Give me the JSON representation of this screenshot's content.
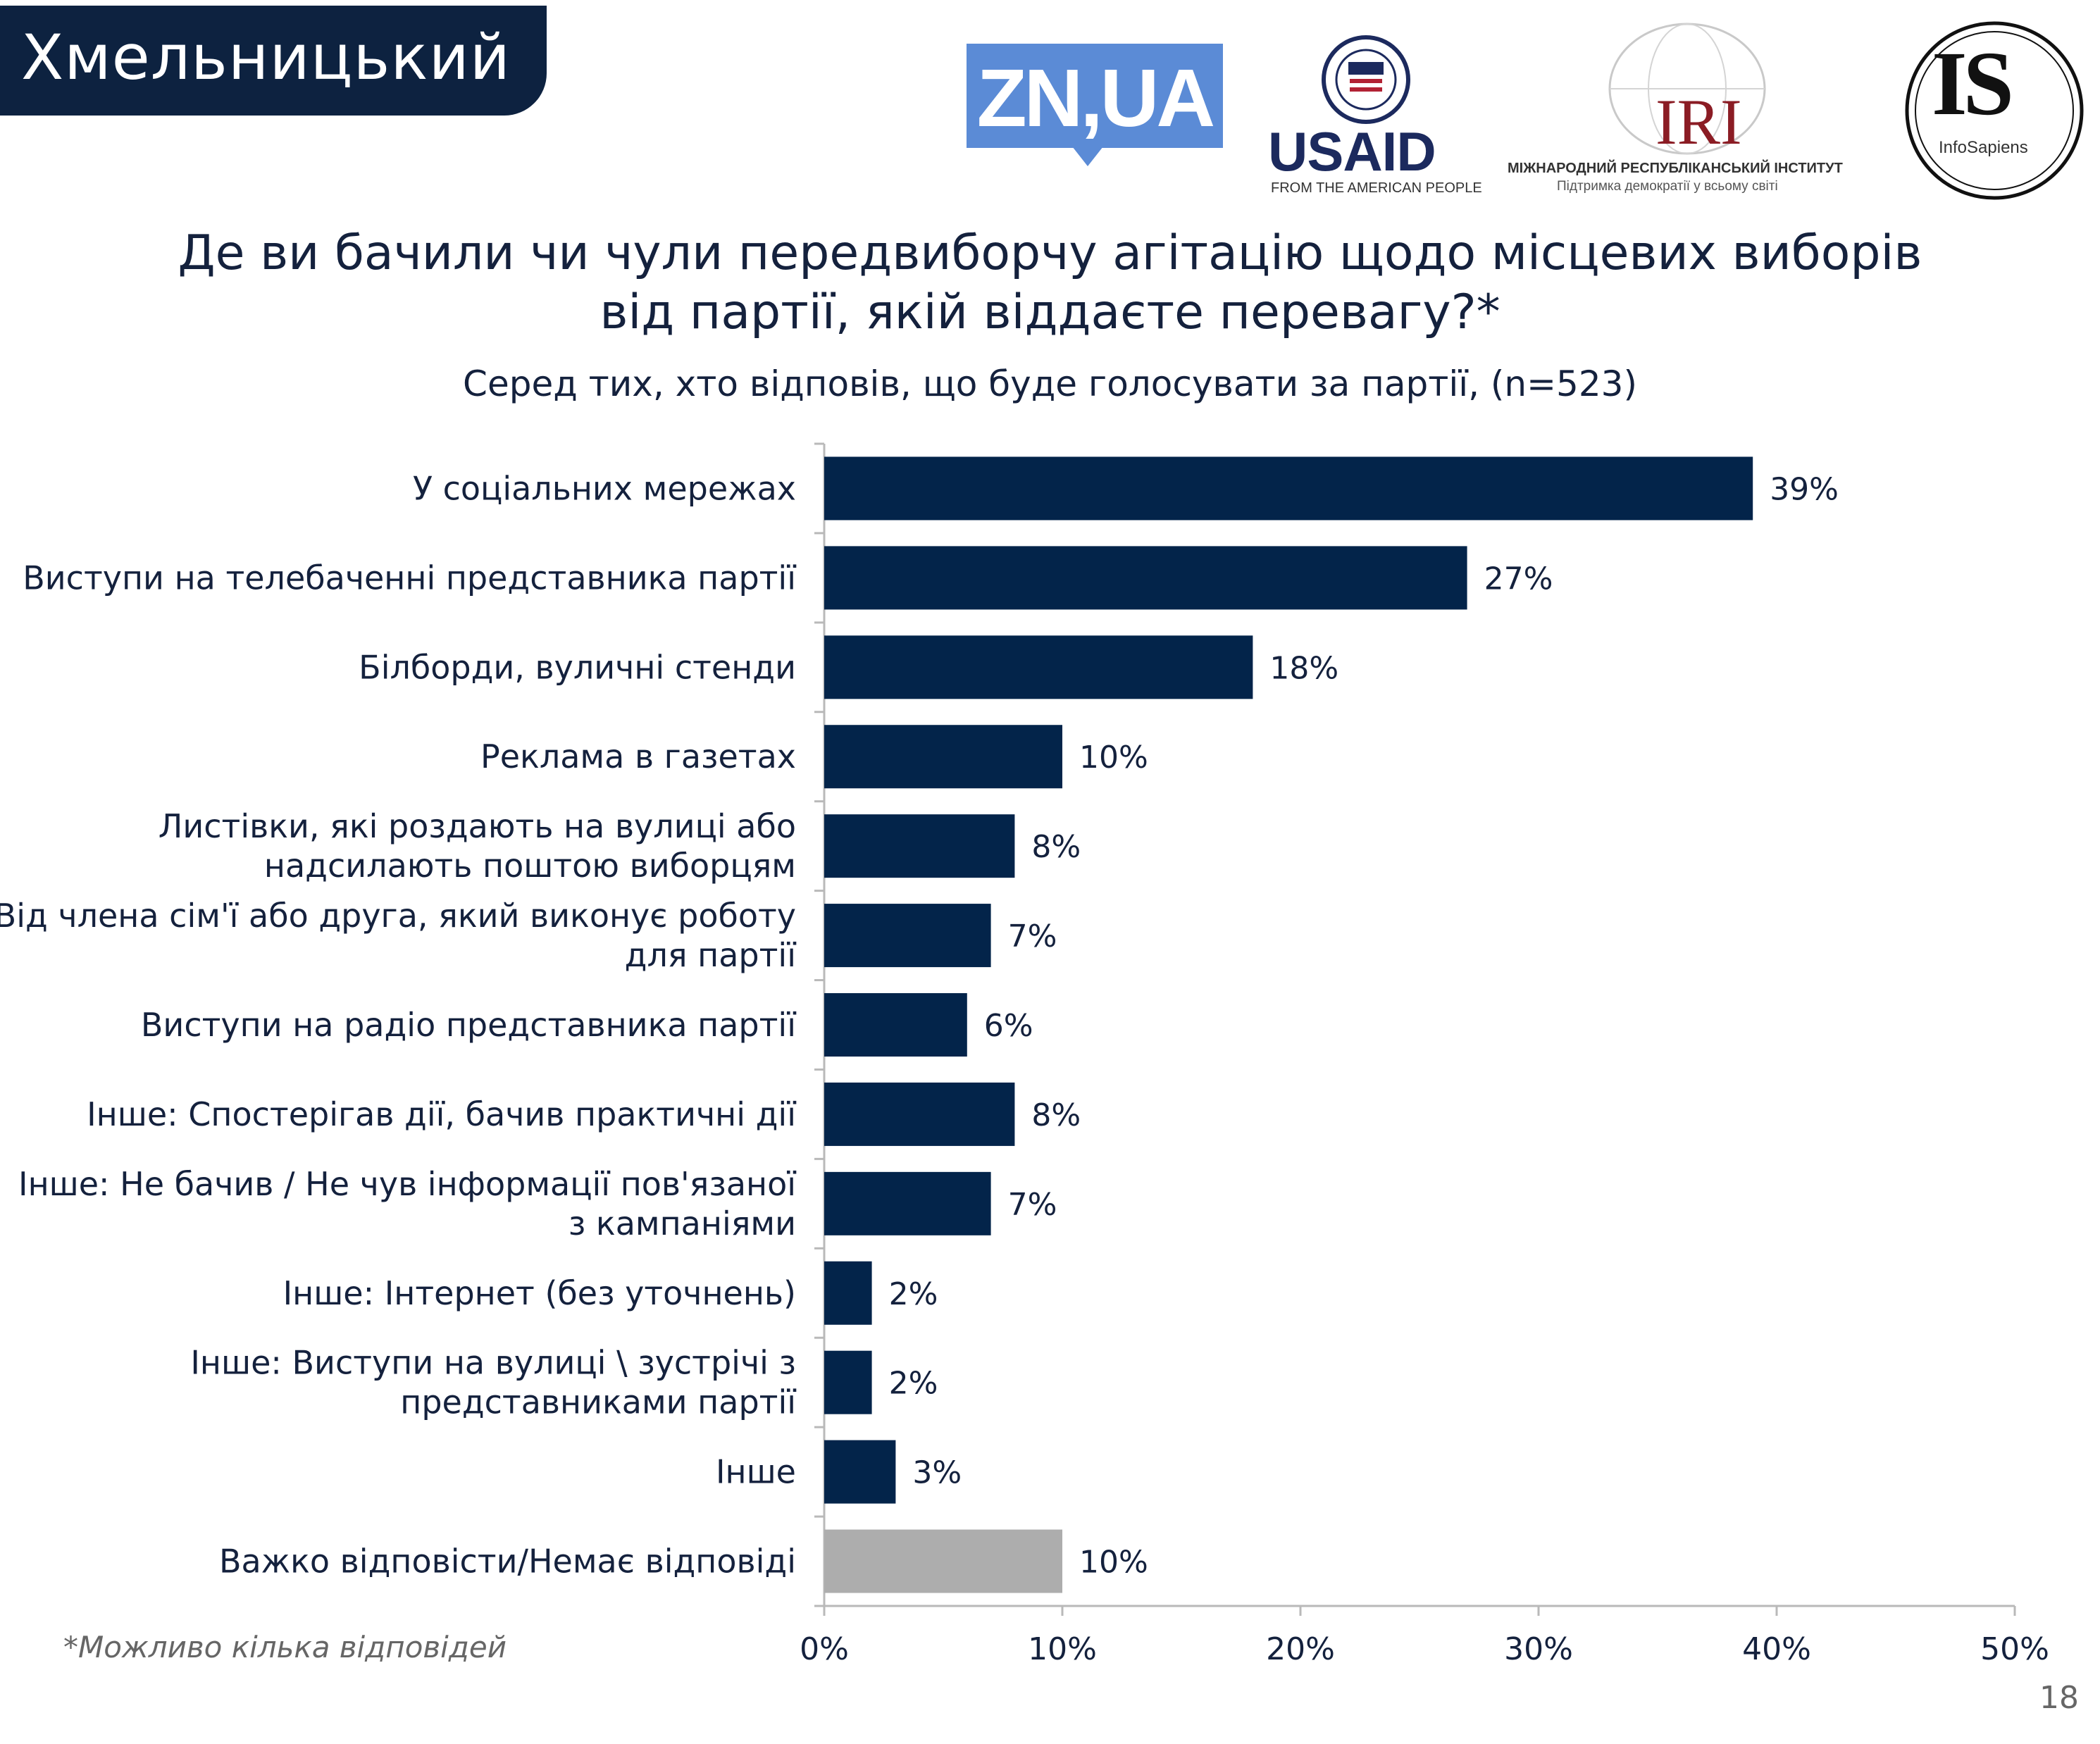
{
  "region": "Хмельницький",
  "logos": {
    "zn": "ZN,UA",
    "usaid": "USAID",
    "usaid_sub": "FROM THE AMERICAN PEOPLE",
    "iri": "IRI",
    "iri_sub1": "МІЖНАРОДНИЙ РЕСПУБЛІКАНСЬКИЙ ІНСТИТУТ",
    "iri_sub2": "Підтримка демократії у всьому світі",
    "is": "IS",
    "is_sub": "InfoSapiens"
  },
  "title_line1": "Де ви бачили чи чули передвиборчу агітацію щодо місцевих виборів",
  "title_line2": "від партії, якій віддаєте перевагу?*",
  "subtitle": "Серед тих, хто відповів, що буде голосувати за партії, (n=523)",
  "footnote": "*Можливо кілька відповідей",
  "page_number": "18",
  "colors": {
    "bar": "#03244a",
    "bar_muted": "#adadad",
    "axis": "#b9b9b9"
  },
  "chart_data": {
    "type": "bar",
    "orientation": "horizontal",
    "xlim": [
      0,
      50
    ],
    "x_ticks": [
      "0%",
      "10%",
      "20%",
      "30%",
      "40%",
      "50%"
    ],
    "categories": [
      [
        "У соціальних мережах"
      ],
      [
        "Виступи на телебаченні представника партії"
      ],
      [
        "Білборди, вуличні стенди"
      ],
      [
        "Реклама в газетах"
      ],
      [
        "Листівки, які роздають на вулиці або",
        "надсилають поштою виборцям"
      ],
      [
        "Від члена сім'ї або друга, який виконує роботу",
        "для партії"
      ],
      [
        "Виступи на радіо представника партії"
      ],
      [
        "Інше: Спостерігав дії, бачив практичні дії"
      ],
      [
        "Інше: Не бачив / Не чув інформації пов'язаної",
        "з кампаніями"
      ],
      [
        "Інше: Інтернет (без уточнень)"
      ],
      [
        "Інше: Виступи на вулиці \\ зустрічі з",
        "представниками партії"
      ],
      [
        "Інше"
      ],
      [
        "Важко відповісти/Немає відповіді"
      ]
    ],
    "values": [
      39,
      27,
      18,
      10,
      8,
      7,
      6,
      8,
      7,
      2,
      2,
      3,
      10
    ],
    "labels": [
      "39%",
      "27%",
      "18%",
      "10%",
      "8%",
      "7%",
      "6%",
      "8%",
      "7%",
      "2%",
      "2%",
      "3%",
      "10%"
    ],
    "muted": [
      false,
      false,
      false,
      false,
      false,
      false,
      false,
      false,
      false,
      false,
      false,
      false,
      true
    ]
  }
}
